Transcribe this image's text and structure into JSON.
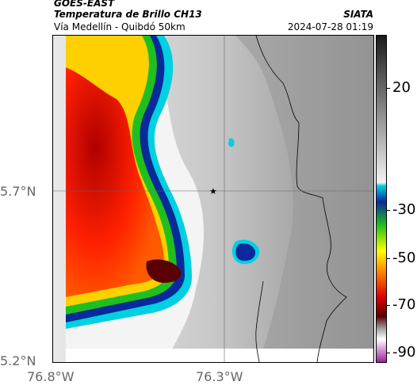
{
  "header": {
    "title": "GOES-EAST",
    "subtitle": "Temperatura de Brillo CH13",
    "region": "Vía Medellín - Quibdó 50km",
    "credit": "SIATA",
    "timestamp": "2024-07-28 01:19"
  },
  "axes": {
    "y_ticks": [
      "5.7°N",
      "5.2°N"
    ],
    "x_ticks": [
      "76.8°W",
      "76.3°W"
    ]
  },
  "colorbar": {
    "ticks": [
      "20",
      "-30",
      "-50",
      "-70",
      "-90"
    ],
    "colors": {
      "gray_light": "#f2f2f2",
      "gray_dark": "#3a3a3a",
      "cyan": "#00cfe0",
      "blue": "#0a2a9a",
      "green": "#1fbf1f",
      "yellow": "#ffff00",
      "orange": "#ff8c00",
      "red": "#e00000",
      "dark_red": "#5a0000",
      "magenta": "#a020a0"
    }
  },
  "map": {
    "marker": "star-icon"
  }
}
